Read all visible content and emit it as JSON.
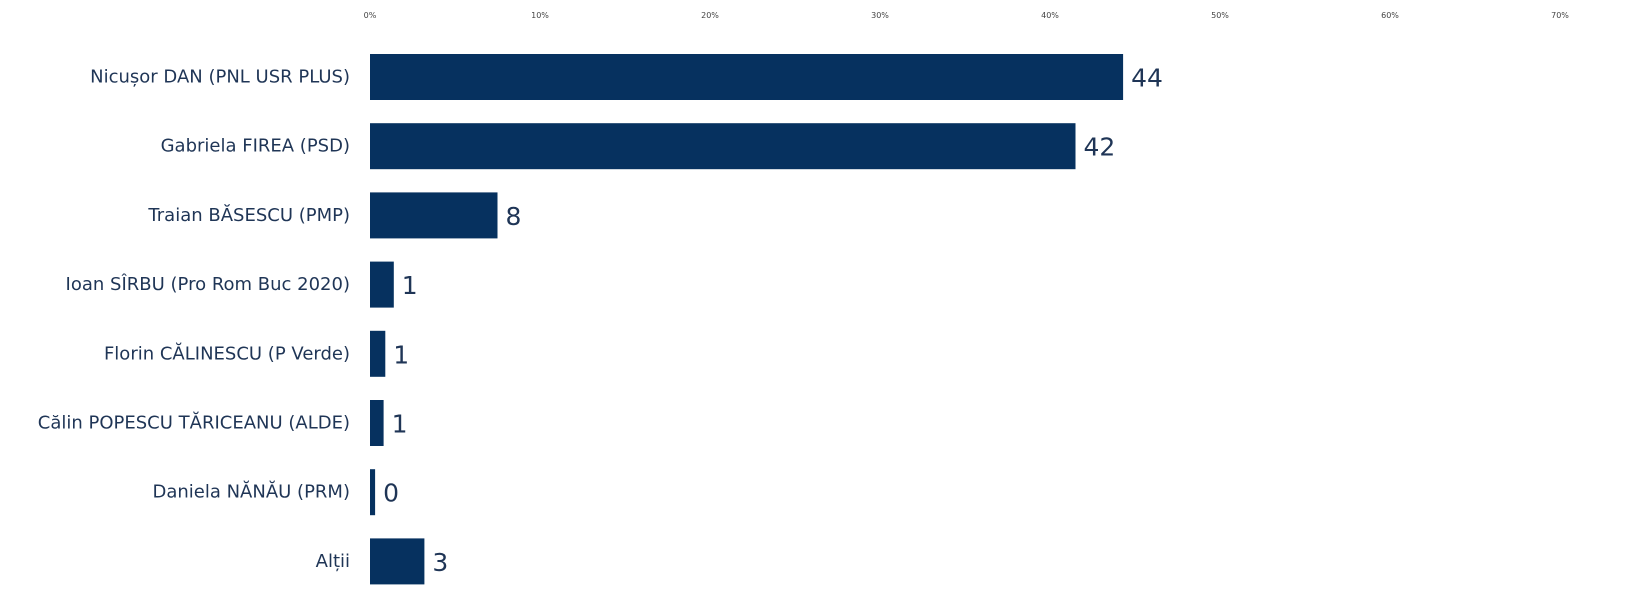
{
  "chart_data": {
    "type": "bar",
    "orientation": "horizontal",
    "categories": [
      "Nicușor DAN (PNL USR PLUS)",
      "Gabriela FIREA (PSD)",
      "Traian BĂSESCU (PMP)",
      "Ioan SÎRBU (Pro Rom Buc 2020)",
      "Florin CĂLINESCU (P Verde)",
      "Călin POPESCU TĂRICEANU (ALDE)",
      "Daniela NĂNĂU (PRM)",
      "Alții"
    ],
    "values": [
      44.3,
      41.5,
      7.5,
      1.4,
      0.9,
      0.8,
      0.3,
      3.2
    ],
    "data_labels": [
      "44",
      "42",
      "8",
      "1",
      "1",
      "1",
      "0",
      "3"
    ],
    "xlim": [
      0,
      70
    ],
    "xticks": [
      "0%",
      "10%",
      "20%",
      "30%",
      "40%",
      "50%",
      "60%",
      "70%"
    ],
    "xaxis_position": "top",
    "grid": false,
    "legend": "none",
    "bar_color": "#06315f",
    "label_color": "#1f3556"
  }
}
